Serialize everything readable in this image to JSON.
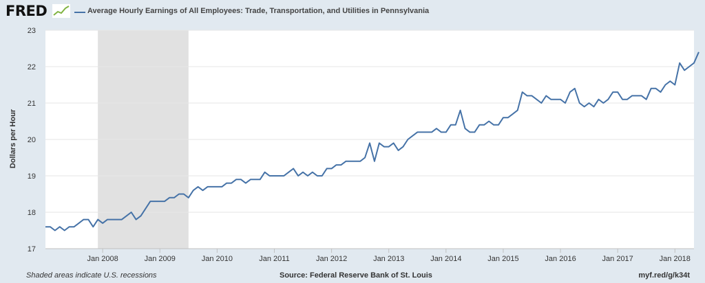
{
  "header": {
    "logo_text": "FRED",
    "legend_label": "Average Hourly Earnings of All Employees: Trade, Transportation, and Utilities in Pennsylvania"
  },
  "footer": {
    "recession_note": "Shaded areas indicate U.S. recessions",
    "source": "Source: Federal Reserve Bank of St. Louis",
    "short_url": "myf.red/g/k34t"
  },
  "colors": {
    "series": "#4572a7",
    "recession": "#e1e1e1",
    "background": "#e1e9f0",
    "plot": "#ffffff",
    "grid": "#e6e6e6"
  },
  "chart_data": {
    "type": "line",
    "title": "",
    "xlabel": "",
    "ylabel": "Dollars per Hour",
    "ylim": [
      17,
      23
    ],
    "yticks": [
      17,
      18,
      19,
      20,
      21,
      22,
      23
    ],
    "xlim": [
      "2007-01",
      "2018-05"
    ],
    "xticks": [
      {
        "date": "2008-01",
        "label": "Jan 2008"
      },
      {
        "date": "2009-01",
        "label": "Jan 2009"
      },
      {
        "date": "2010-01",
        "label": "Jan 2010"
      },
      {
        "date": "2011-01",
        "label": "Jan 2011"
      },
      {
        "date": "2012-01",
        "label": "Jan 2012"
      },
      {
        "date": "2013-01",
        "label": "Jan 2013"
      },
      {
        "date": "2014-01",
        "label": "Jan 2014"
      },
      {
        "date": "2015-01",
        "label": "Jan 2015"
      },
      {
        "date": "2016-01",
        "label": "Jan 2016"
      },
      {
        "date": "2017-01",
        "label": "Jan 2017"
      },
      {
        "date": "2018-01",
        "label": "Jan 2018"
      }
    ],
    "grid": true,
    "recessions": [
      {
        "start": "2007-12",
        "end": "2009-06"
      }
    ],
    "series": [
      {
        "name": "Average Hourly Earnings of All Employees: Trade, Transportation, and Utilities in Pennsylvania",
        "start": "2007-01",
        "frequency": "monthly",
        "values": [
          17.6,
          17.6,
          17.5,
          17.6,
          17.5,
          17.6,
          17.6,
          17.7,
          17.8,
          17.8,
          17.6,
          17.8,
          17.7,
          17.8,
          17.8,
          17.8,
          17.8,
          17.9,
          18.0,
          17.8,
          17.9,
          18.1,
          18.3,
          18.3,
          18.3,
          18.3,
          18.4,
          18.4,
          18.5,
          18.5,
          18.4,
          18.6,
          18.7,
          18.6,
          18.7,
          18.7,
          18.7,
          18.7,
          18.8,
          18.8,
          18.9,
          18.9,
          18.8,
          18.9,
          18.9,
          18.9,
          19.1,
          19.0,
          19.0,
          19.0,
          19.0,
          19.1,
          19.2,
          19.0,
          19.1,
          19.0,
          19.1,
          19.0,
          19.0,
          19.2,
          19.2,
          19.3,
          19.3,
          19.4,
          19.4,
          19.4,
          19.4,
          19.5,
          19.9,
          19.4,
          19.9,
          19.8,
          19.8,
          19.9,
          19.7,
          19.8,
          20.0,
          20.1,
          20.2,
          20.2,
          20.2,
          20.2,
          20.3,
          20.2,
          20.2,
          20.4,
          20.4,
          20.8,
          20.3,
          20.2,
          20.2,
          20.4,
          20.4,
          20.5,
          20.4,
          20.4,
          20.6,
          20.6,
          20.7,
          20.8,
          21.3,
          21.2,
          21.2,
          21.1,
          21.0,
          21.2,
          21.1,
          21.1,
          21.1,
          21.0,
          21.3,
          21.4,
          21.0,
          20.9,
          21.0,
          20.9,
          21.1,
          21.0,
          21.1,
          21.3,
          21.3,
          21.1,
          21.1,
          21.2,
          21.2,
          21.2,
          21.1,
          21.4,
          21.4,
          21.3,
          21.5,
          21.6,
          21.5,
          22.1,
          21.9,
          22.0,
          22.1,
          22.4
        ]
      }
    ]
  }
}
